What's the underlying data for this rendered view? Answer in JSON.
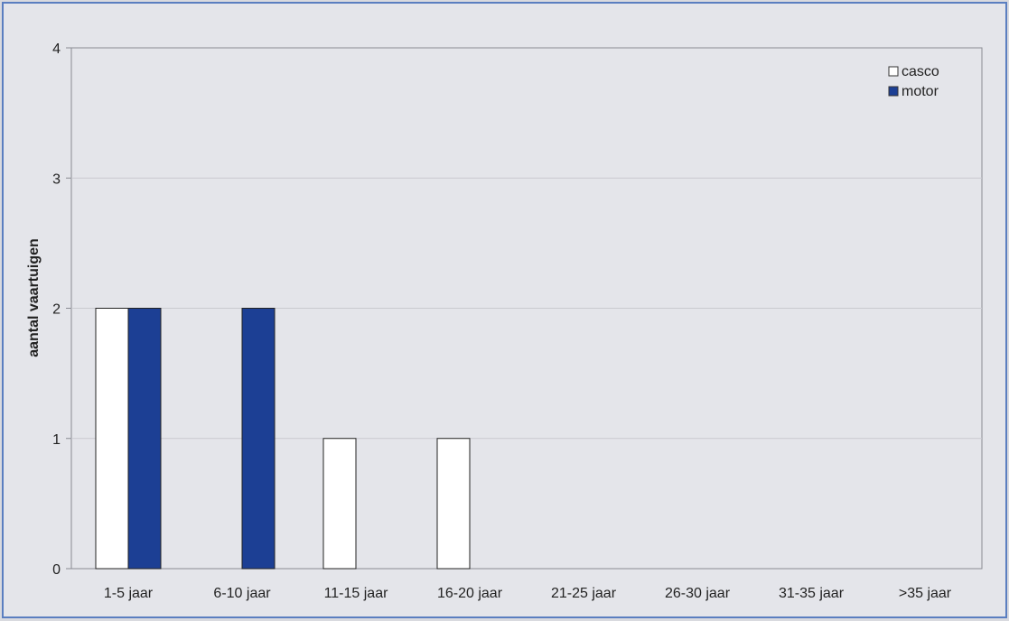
{
  "chart_data": {
    "type": "bar",
    "title": "",
    "xlabel": "",
    "ylabel": "aantal vaartuigen",
    "ylim": [
      0,
      4
    ],
    "yticks": [
      0,
      1,
      2,
      3,
      4
    ],
    "grid": true,
    "legend_position": "top-right",
    "categories": [
      "1-5 jaar",
      "6-10 jaar",
      "11-15 jaar",
      "16-20 jaar",
      "21-25 jaar",
      "26-30 jaar",
      "31-35 jaar",
      ">35 jaar"
    ],
    "series": [
      {
        "name": "casco",
        "color": "#ffffff",
        "values": [
          2,
          0,
          1,
          1,
          0,
          0,
          0,
          0
        ]
      },
      {
        "name": "motor",
        "color": "#1c3f94",
        "values": [
          2,
          2,
          0,
          0,
          0,
          0,
          0,
          0
        ]
      }
    ]
  }
}
